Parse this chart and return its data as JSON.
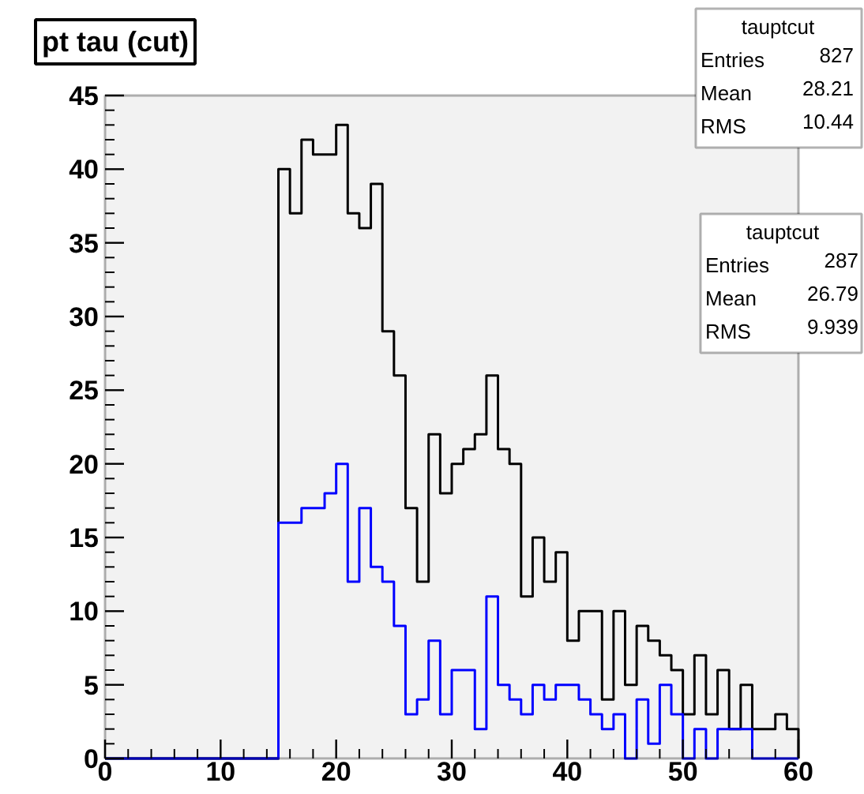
{
  "chart_data": {
    "type": "histogram",
    "title": "pt tau (cut)",
    "bins": [
      0,
      1,
      2,
      3,
      4,
      5,
      6,
      7,
      8,
      9,
      10,
      11,
      12,
      13,
      14,
      15,
      16,
      17,
      18,
      19,
      20,
      21,
      22,
      23,
      24,
      25,
      26,
      27,
      28,
      29,
      30,
      31,
      32,
      33,
      34,
      35,
      36,
      37,
      38,
      39,
      40,
      41,
      42,
      43,
      44,
      45,
      46,
      47,
      48,
      49,
      50,
      51,
      52,
      53,
      54,
      55,
      56,
      57,
      58,
      59,
      60
    ],
    "series": [
      {
        "color": "#000000",
        "values": [
          0,
          0,
          0,
          0,
          0,
          0,
          0,
          0,
          0,
          0,
          0,
          0,
          0,
          0,
          0,
          40,
          37,
          42,
          41,
          41,
          43,
          37,
          36,
          39,
          29,
          26,
          17,
          12,
          22,
          18,
          20,
          21,
          22,
          26,
          21,
          20,
          11,
          15,
          12,
          14,
          8,
          10,
          10,
          4,
          10,
          5,
          9,
          8,
          7,
          6,
          3,
          7,
          3,
          6,
          2,
          5,
          2,
          2,
          3,
          2
        ]
      },
      {
        "color": "#0000ff",
        "values": [
          0,
          0,
          0,
          0,
          0,
          0,
          0,
          0,
          0,
          0,
          0,
          0,
          0,
          0,
          0,
          16,
          16,
          17,
          17,
          18,
          20,
          12,
          17,
          13,
          12,
          9,
          3,
          4,
          8,
          3,
          6,
          6,
          2,
          11,
          5,
          4,
          3,
          5,
          4,
          5,
          5,
          4,
          3,
          2,
          3,
          0,
          4,
          1,
          5,
          3,
          0,
          2,
          0,
          2,
          2,
          2,
          0,
          0,
          0,
          0
        ]
      }
    ],
    "xlim": [
      0,
      60
    ],
    "ylim": [
      0,
      45
    ],
    "xticks": [
      0,
      10,
      20,
      30,
      40,
      50,
      60
    ],
    "yticks": [
      0,
      5,
      10,
      15,
      20,
      25,
      30,
      35,
      40,
      45
    ],
    "grid": false,
    "annotations": [
      "tauptcut",
      "Entries 827",
      "Mean 28.21",
      "RMS 10.44",
      "tauptcut",
      "Entries 287",
      "Mean 26.79",
      "RMS 9.939"
    ]
  }
}
